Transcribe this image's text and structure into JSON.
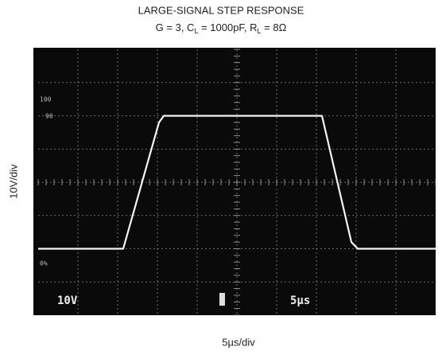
{
  "chart_data": {
    "type": "line",
    "title": "LARGE-SIGNAL STEP RESPONSE",
    "subtitle": [
      "G = 3, C",
      "L",
      " = 1000pF, R",
      "L",
      " = 8Ω"
    ],
    "y_label": "10V/div",
    "x_label": "5µs/div",
    "screen_labels": {
      "top": "100",
      "high": "90",
      "zero": "0%",
      "volts": "10V",
      "time": "5µs"
    },
    "xlim": [
      0,
      50
    ],
    "ylim": [
      -40,
      40
    ],
    "series": [
      {
        "color": "#f4f4f4",
        "x": [
          0,
          10.7,
          15.2,
          15.8,
          35.7,
          39.4,
          40.2,
          50
        ],
        "values": [
          -20,
          -20,
          18,
          20,
          20,
          -18,
          -20,
          -20
        ]
      }
    ]
  }
}
